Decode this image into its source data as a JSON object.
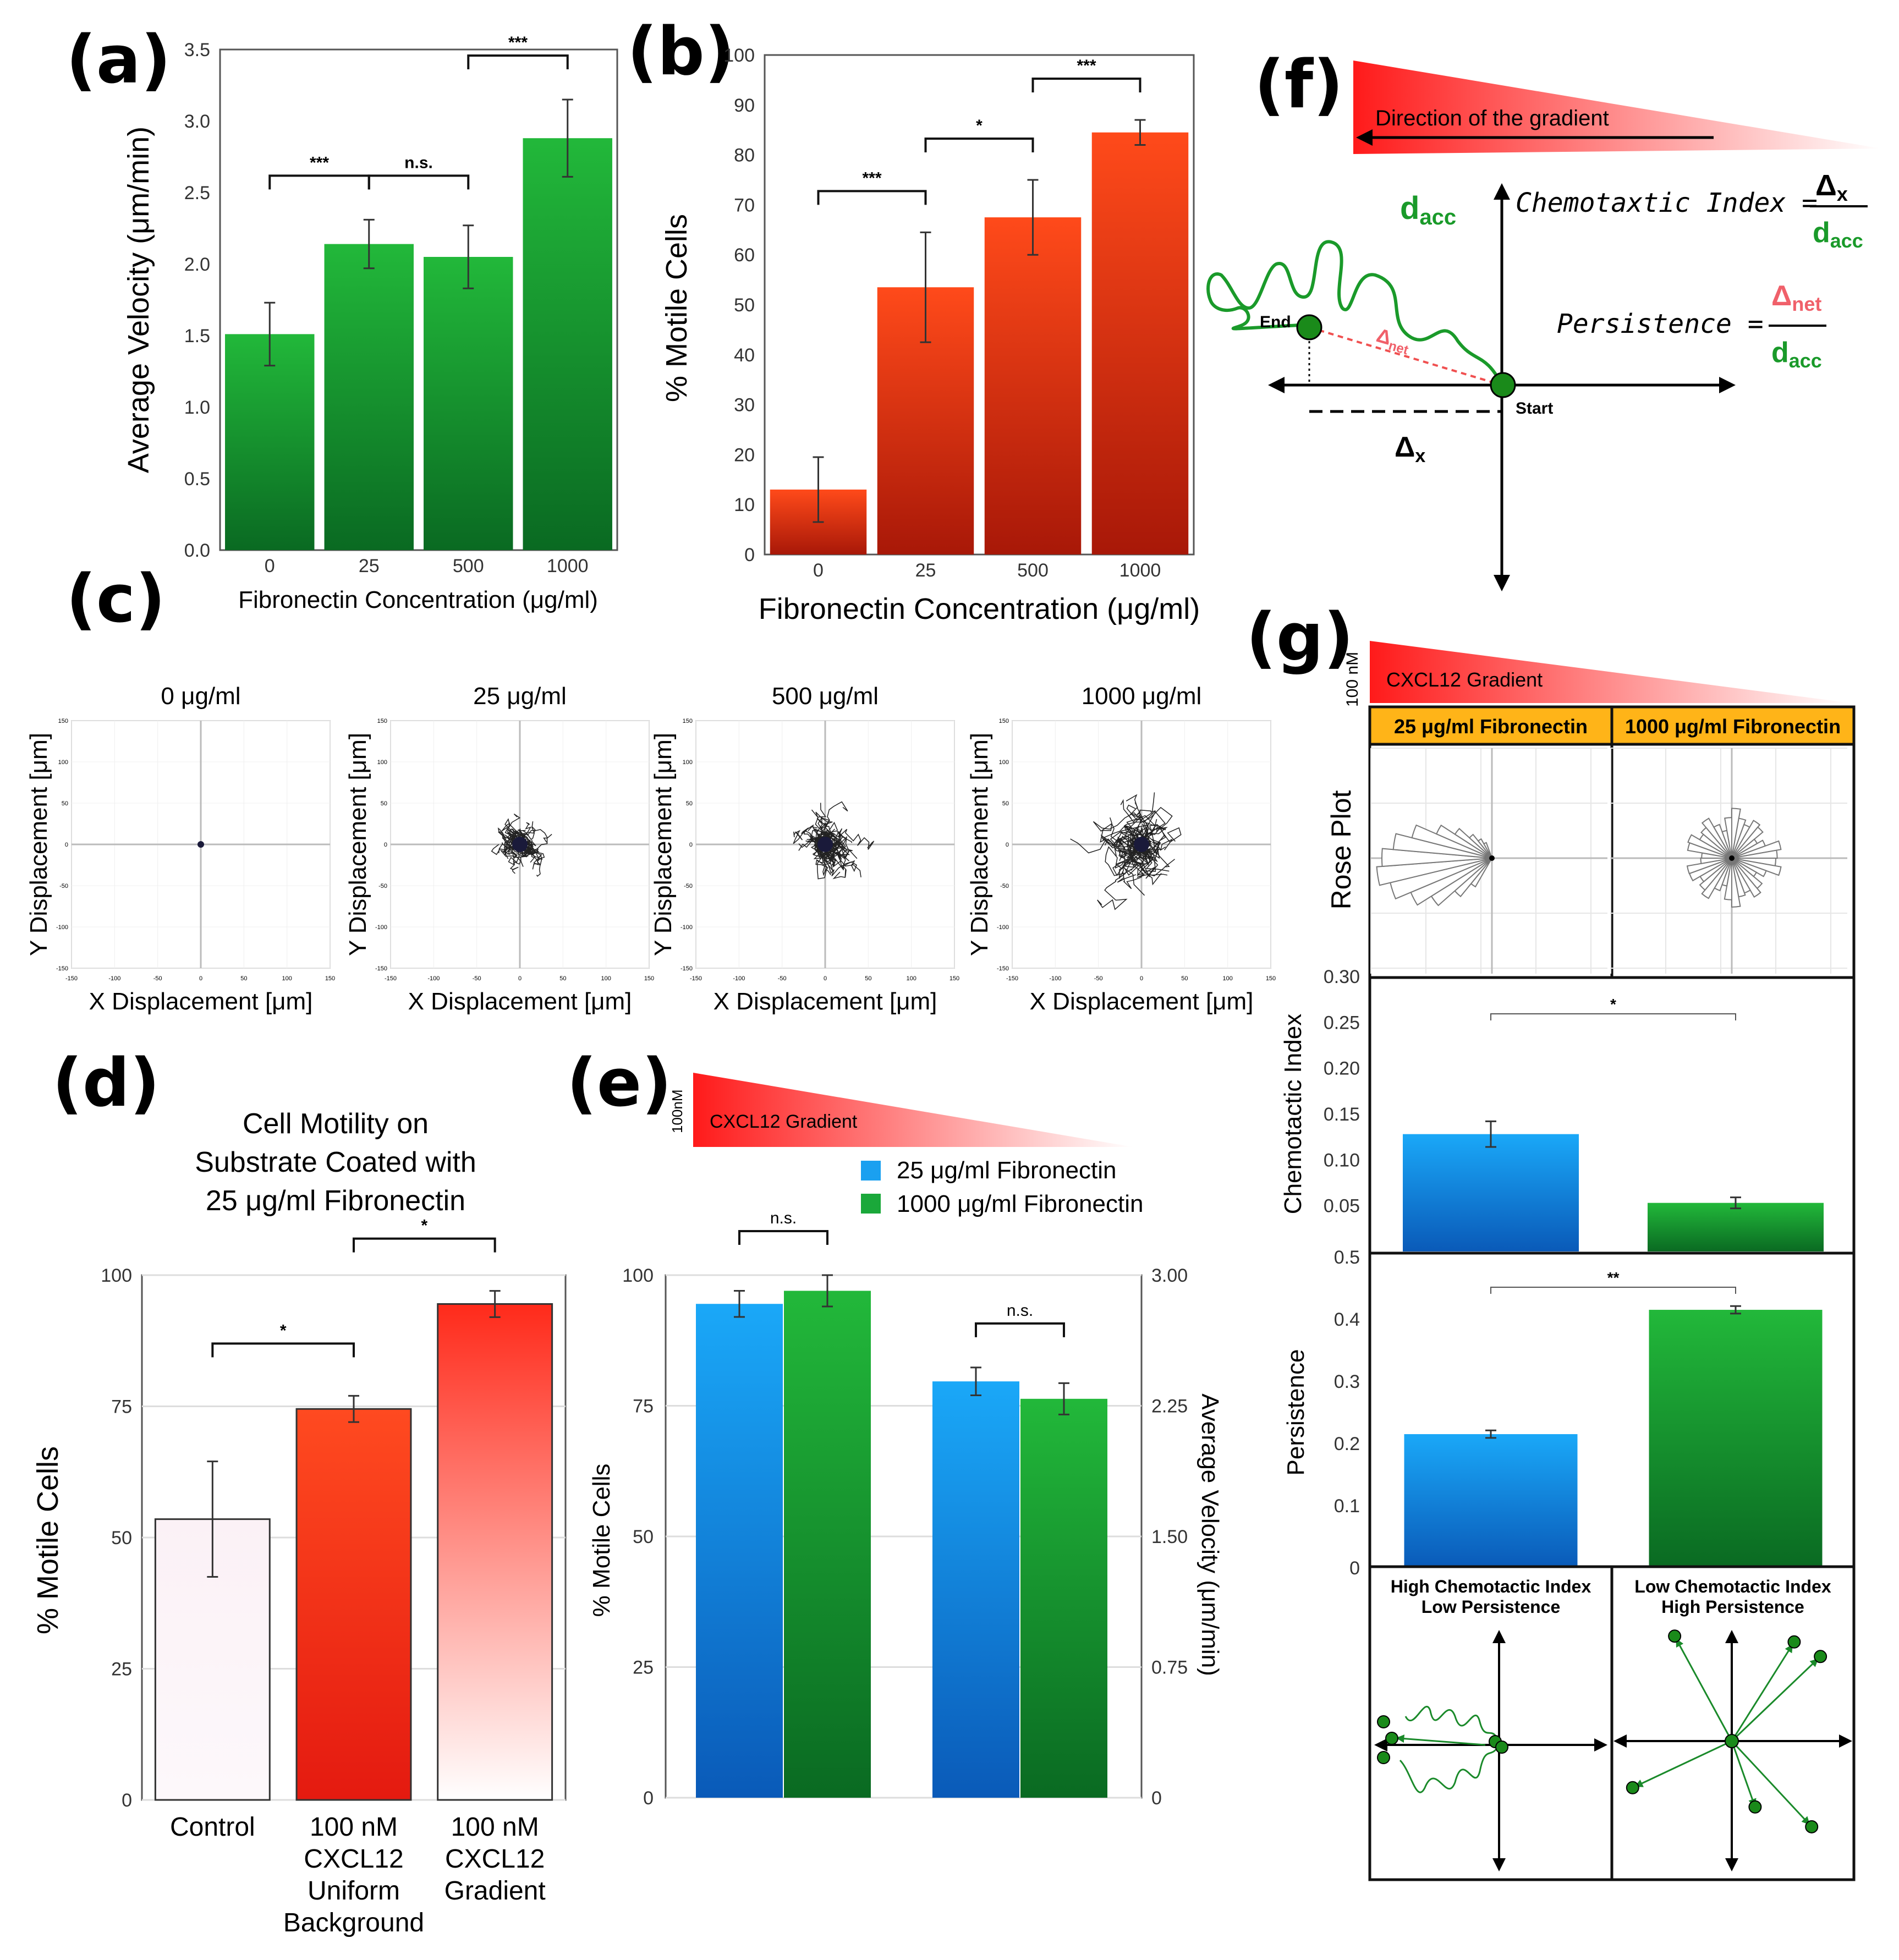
{
  "panels": {
    "a": "(a)",
    "b": "(b)",
    "c": "(c)",
    "d": "(d)",
    "e": "(e)",
    "f": "(f)",
    "g": "(g)"
  },
  "colors": {
    "green_top": "#22b83a",
    "green_bot": "#0a6a22",
    "red_top": "#ff4a1a",
    "red_bot": "#a81808",
    "blue_top": "#1aa8f8",
    "blue_bot": "#0a5ab8",
    "pink": "#fbf1f6"
  },
  "chart_data": [
    {
      "id": "a",
      "type": "bar",
      "categories": [
        "0",
        "25",
        "500",
        "1000"
      ],
      "values": [
        1.51,
        2.14,
        2.05,
        2.88
      ],
      "errors": [
        0.22,
        0.17,
        0.22,
        0.27
      ],
      "ylim": [
        0,
        3.5
      ],
      "yticks": [
        "0.0",
        "0.5",
        "1.0",
        "1.5",
        "2.0",
        "2.5",
        "3.0",
        "3.5"
      ],
      "xlabel": "Fibronectin Concentration (μg/ml)",
      "ylabel": "Average Velocity (μm/min)",
      "significance": [
        {
          "from": 0,
          "to": 1,
          "label": "***"
        },
        {
          "from": 1,
          "to": 2,
          "label": "n.s."
        },
        {
          "from": 2,
          "to": 3,
          "label": "***"
        }
      ]
    },
    {
      "id": "b",
      "type": "bar",
      "categories": [
        "0",
        "25",
        "500",
        "1000"
      ],
      "values": [
        13,
        53.5,
        67.5,
        84.5
      ],
      "errors": [
        6.5,
        11,
        7.5,
        2.5
      ],
      "ylim": [
        0,
        100
      ],
      "yticks": [
        "0",
        "10",
        "20",
        "30",
        "40",
        "50",
        "60",
        "70",
        "80",
        "90",
        "100"
      ],
      "xlabel": "Fibronectin Concentration (μg/ml)",
      "ylabel": "% Motile Cells",
      "significance": [
        {
          "from": 0,
          "to": 1,
          "label": "***"
        },
        {
          "from": 1,
          "to": 2,
          "label": "*"
        },
        {
          "from": 2,
          "to": 3,
          "label": "***"
        }
      ]
    },
    {
      "id": "c",
      "type": "scatter",
      "titles": [
        "0 μg/ml",
        "25 μg/ml",
        "500 μg/ml",
        "1000 μg/ml"
      ],
      "xlabel": "X Displacement [μm]",
      "ylabel": "Y Displacement [μm]",
      "xlim": [
        -150,
        150
      ],
      "ylim": [
        -150,
        150
      ],
      "ticks": [
        "-150",
        "-100",
        "-50",
        "0",
        "50",
        "100",
        "150"
      ],
      "ytick_labels": [
        "150",
        "100",
        "50",
        "0",
        "-50",
        "-100",
        "-150"
      ],
      "spread": [
        2,
        22,
        30,
        42
      ]
    },
    {
      "id": "d",
      "type": "bar",
      "title_lines": [
        "Cell Motility on",
        "Substrate Coated with",
        "25 μg/ml Fibronectin"
      ],
      "categories": [
        [
          "Control"
        ],
        [
          "100 nM",
          "CXCL12",
          "Uniform",
          "Background"
        ],
        [
          "100 nM",
          "CXCL12",
          "Gradient"
        ]
      ],
      "values": [
        53.5,
        74.5,
        94.5
      ],
      "errors": [
        11,
        2.5,
        2.5
      ],
      "ylim": [
        0,
        100
      ],
      "yticks": [
        "0",
        "25",
        "50",
        "75",
        "100"
      ],
      "ylabel": "% Motile Cells",
      "significance": [
        {
          "from": 0,
          "to": 1,
          "label": "*"
        },
        {
          "from": 1,
          "to": 2,
          "label": "*"
        }
      ]
    },
    {
      "id": "e",
      "type": "bar",
      "gradient_label": "CXCL12 Gradient",
      "gradient_conc": "100nM",
      "legend": [
        "25 μg/ml Fibronectin",
        "1000 μg/ml Fibronectin"
      ],
      "groups": [
        {
          "name": "% Motile Cells",
          "values": [
            94.5,
            97
          ],
          "errors": [
            2.5,
            3
          ]
        },
        {
          "name": "Average Velocity",
          "values": [
            2.39,
            2.29
          ],
          "errors": [
            0.08,
            0.09
          ]
        }
      ],
      "ylim_left": [
        0,
        100
      ],
      "yticks_left": [
        "0",
        "25",
        "50",
        "75",
        "100"
      ],
      "ylim_right": [
        0,
        3
      ],
      "yticks_right": [
        "0",
        "0.75",
        "1.50",
        "2.25",
        "3.00"
      ],
      "ylabel_left": "% Motile Cells",
      "ylabel_right": "Average Velocity (μm/min)",
      "significance": [
        "n.s.",
        "n.s."
      ]
    },
    {
      "id": "g_ci",
      "type": "bar",
      "categories": [
        "25 μg/ml Fibronectin",
        "1000 μg/ml Fibronectin"
      ],
      "values": [
        0.128,
        0.053
      ],
      "errors": [
        0.014,
        0.006
      ],
      "ylim": [
        0,
        0.3
      ],
      "yticks": [
        "0.05",
        "0.10",
        "0.15",
        "0.20",
        "0.25",
        "0.30"
      ],
      "ylabel": "Chemotactic Index",
      "significance": "*"
    },
    {
      "id": "g_p",
      "type": "bar",
      "categories": [
        "25 μg/ml Fibronectin",
        "1000 μg/ml Fibronectin"
      ],
      "values": [
        0.215,
        0.415
      ],
      "errors": [
        0.006,
        0.006
      ],
      "ylim": [
        0,
        0.5
      ],
      "yticks": [
        "0",
        "0.1",
        "0.2",
        "0.3",
        "0.4",
        "0.5"
      ],
      "ylabel": "Persistence",
      "significance": "**"
    }
  ],
  "f": {
    "gradient_text": "Direction of the gradient",
    "dacc": "d",
    "acc_sub": "acc",
    "end": "End",
    "start": "Start",
    "delta": "Δ",
    "net_sub": "net",
    "x_sub": "x",
    "ci_label": "Chemotaxtic Index =",
    "persistence_label": "Persistence ="
  },
  "g": {
    "gradient_label": "CXCL12 Gradient",
    "gradient_conc": "100 nM",
    "col1": "25 μg/ml Fibronectin",
    "col2": "1000 μg/ml Fibronectin",
    "rose_label": "Rose Plot",
    "bottom_left": [
      "High Chemotactic Index",
      "Low Persistence"
    ],
    "bottom_right": [
      "Low Chemotactic Index",
      "High Persistence"
    ]
  }
}
